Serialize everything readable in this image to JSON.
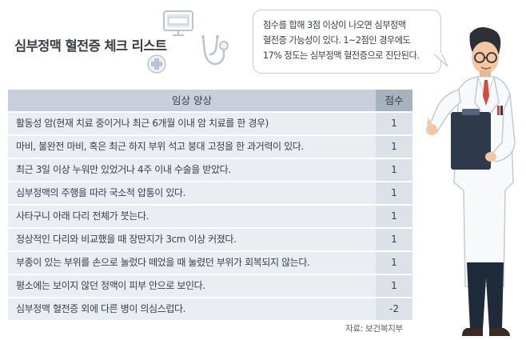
{
  "title": "심부정맥 혈전증 체크 리스트",
  "bubble": {
    "lines": [
      "점수를 합해 3점 이상이 나오면 심부정맥",
      "혈전증 가능성이 있다. 1~2점인 경우에도",
      "17% 정도는 심부정맥 혈전증으로 진단된다."
    ]
  },
  "table": {
    "header": {
      "symptom": "임상 양상",
      "score": "점수"
    },
    "rows": [
      {
        "symptom": "활동성 암(현재 치료 중이거나 최근 6개월 이내 암 치료를 한 경우)",
        "score": "1"
      },
      {
        "symptom": "마비, 불완전 마비, 혹은 최근 하지 부위 석고 붕대 고정을 한 과거력이 있다.",
        "score": "1"
      },
      {
        "symptom": "최근 3일 이상 누워만 있었거나 4주 이내 수술을 받았다.",
        "score": "1"
      },
      {
        "symptom": "심부정맥의 주행을 따라 국소적 압통이 있다.",
        "score": "1"
      },
      {
        "symptom": "사타구니 아래 다리 전체가 붓는다.",
        "score": "1"
      },
      {
        "symptom": "정상적인 다리와 비교했을 때 장딴지가 3cm 이상 커졌다.",
        "score": "1"
      },
      {
        "symptom": "부종이 있는 부위를 손으로 눌렀다 떼었을 때 눌렸던 부위가 회복되지 않는다.",
        "score": "1"
      },
      {
        "symptom": "평소에는 보이지 않던 정맥이 피부 안으로 보인다.",
        "score": "1"
      },
      {
        "symptom": "심부정맥 혈전증 외에 다른 병이 의심스럽다.",
        "score": "-2"
      }
    ]
  },
  "source": "자료: 보건복지부",
  "colors": {
    "header_bg": "#c7d0da",
    "header_score_bg": "#a7b2bf",
    "row_bg": "#eaedf1",
    "row_score_bg": "#dde2e8",
    "tie": "#d94a3c",
    "clipboard": "#2f3a4a"
  },
  "icons": [
    "monitor-icon",
    "stethoscope-icon",
    "medical-cross-icon",
    "doctor-illustration"
  ]
}
